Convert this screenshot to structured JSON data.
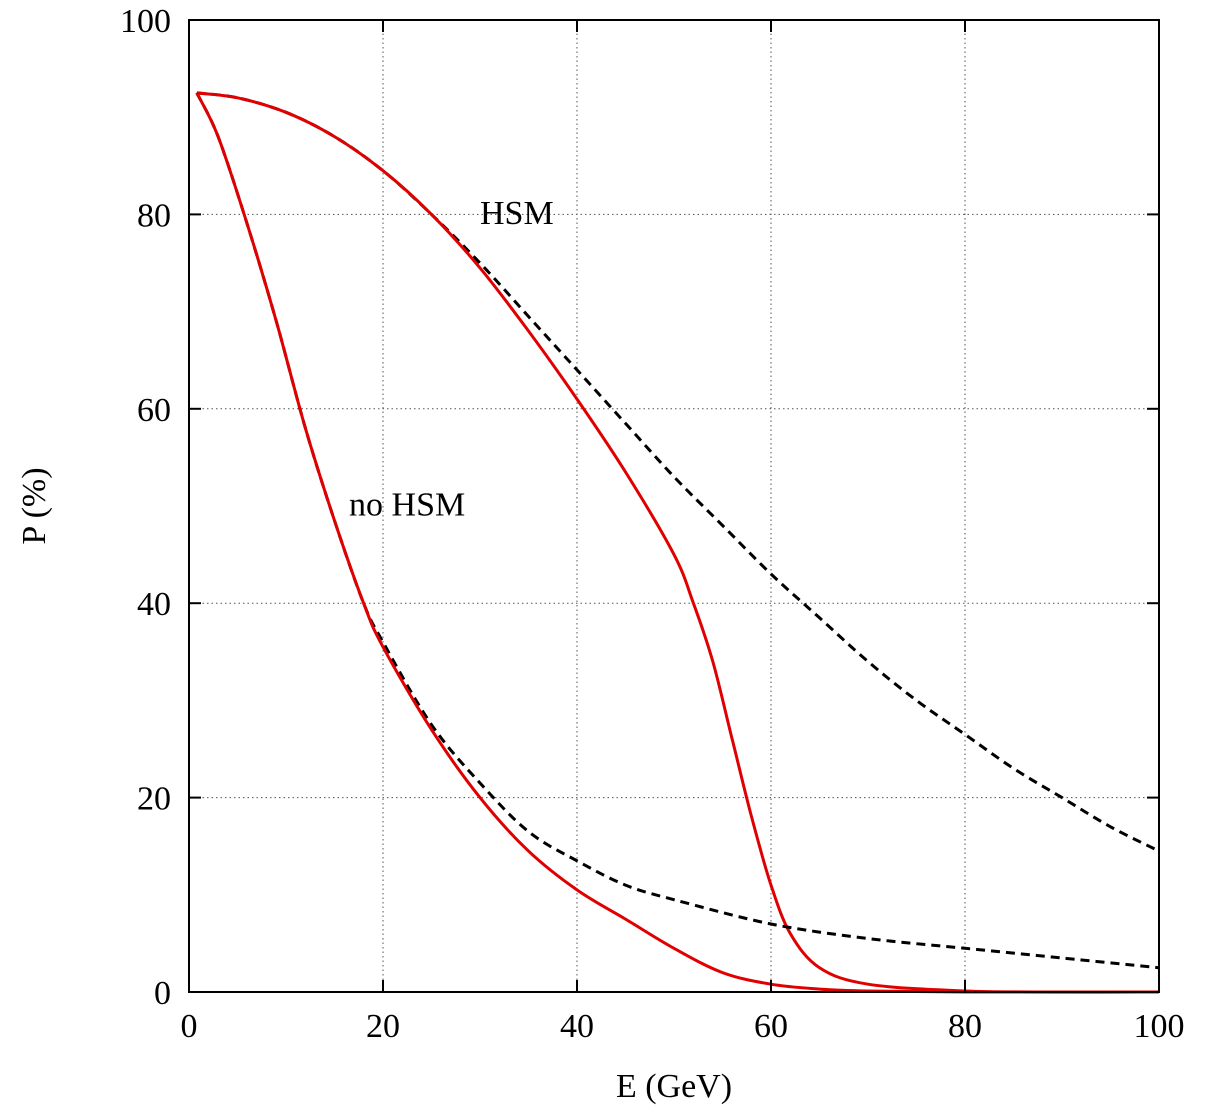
{
  "chart_data": {
    "type": "line",
    "xlabel": "E (GeV)",
    "ylabel": "P (%)",
    "xlim": [
      0,
      100
    ],
    "ylim": [
      0,
      100
    ],
    "xticks": [
      0,
      20,
      40,
      60,
      80,
      100
    ],
    "yticks": [
      0,
      20,
      40,
      60,
      80,
      100
    ],
    "grid": true,
    "annotations": [
      {
        "text": "HSM",
        "x": 30,
        "y": 79
      },
      {
        "text": "no HSM",
        "x": 16.5,
        "y": 49
      }
    ],
    "series": [
      {
        "style": "dashed",
        "color": "#000000",
        "x": [
          0.8,
          5,
          10,
          15,
          20,
          25,
          30,
          35,
          40,
          45,
          50,
          55,
          60,
          65,
          70,
          75,
          80,
          85,
          90,
          95,
          100
        ],
        "y": [
          92.5,
          92,
          90.5,
          88,
          84.5,
          80,
          75,
          69.5,
          64,
          58.5,
          53,
          48,
          43,
          38.5,
          34,
          30,
          26.5,
          23,
          20,
          17,
          14.5
        ]
      },
      {
        "style": "solid",
        "color": "#e00000",
        "x": [
          0.8,
          5,
          10,
          15,
          20,
          25,
          30,
          35,
          40,
          45,
          50,
          52,
          54,
          56,
          58,
          60,
          62,
          65,
          70,
          80,
          90,
          100
        ],
        "y": [
          92.5,
          92,
          90.5,
          88,
          84.5,
          80,
          74.5,
          68,
          61,
          53.5,
          45,
          40,
          34,
          26,
          18,
          11,
          6,
          2.5,
          0.8,
          0.1,
          0,
          0
        ]
      },
      {
        "style": "dashed",
        "color": "#000000",
        "x": [
          0.8,
          3,
          6,
          9,
          12,
          15,
          18,
          20,
          25,
          30,
          35,
          40,
          45,
          50,
          60,
          70,
          80,
          90,
          100
        ],
        "y": [
          92.5,
          88,
          79,
          69,
          58,
          48.5,
          40,
          36,
          27.5,
          21.5,
          16.5,
          13.5,
          11,
          9.5,
          7,
          5.5,
          4.5,
          3.5,
          2.5
        ]
      },
      {
        "style": "solid",
        "color": "#e00000",
        "x": [
          0.8,
          3,
          6,
          9,
          12,
          15,
          18,
          20,
          25,
          30,
          35,
          40,
          45,
          50,
          55,
          60,
          65,
          70,
          80,
          100
        ],
        "y": [
          92.5,
          88,
          79,
          69,
          58,
          48.5,
          40,
          35.5,
          27,
          20,
          14.5,
          10.5,
          7.5,
          4.5,
          2,
          0.8,
          0.3,
          0.1,
          0,
          0
        ]
      }
    ]
  }
}
